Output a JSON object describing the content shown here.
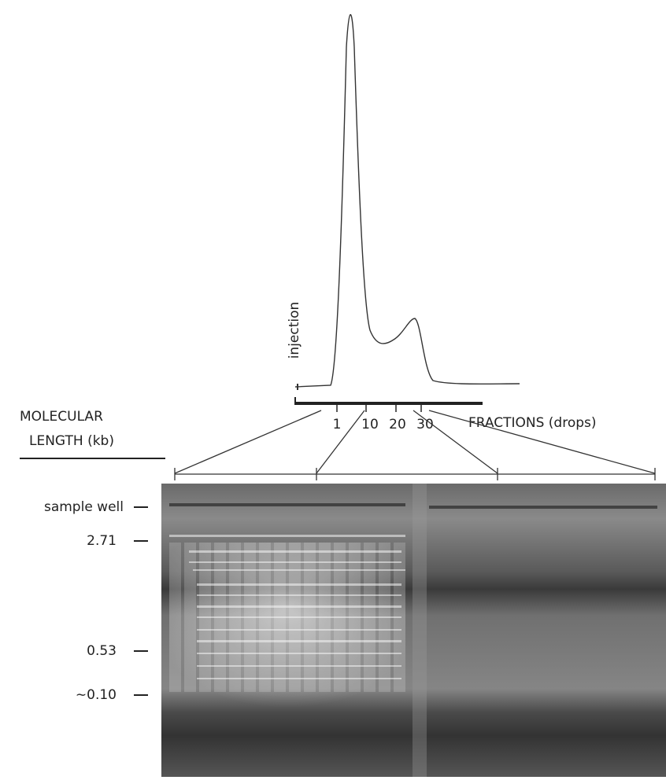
{
  "trace": {
    "label": "injection",
    "ticks": [
      "1",
      "10",
      "20",
      "30"
    ],
    "axis_label": "FRACTIONS (drops)"
  },
  "gel": {
    "axis_title": [
      "MOLECULAR",
      "LENGTH (kb)"
    ],
    "markers": [
      "sample well",
      "2.71",
      "0.53",
      "∼0.10"
    ]
  }
}
